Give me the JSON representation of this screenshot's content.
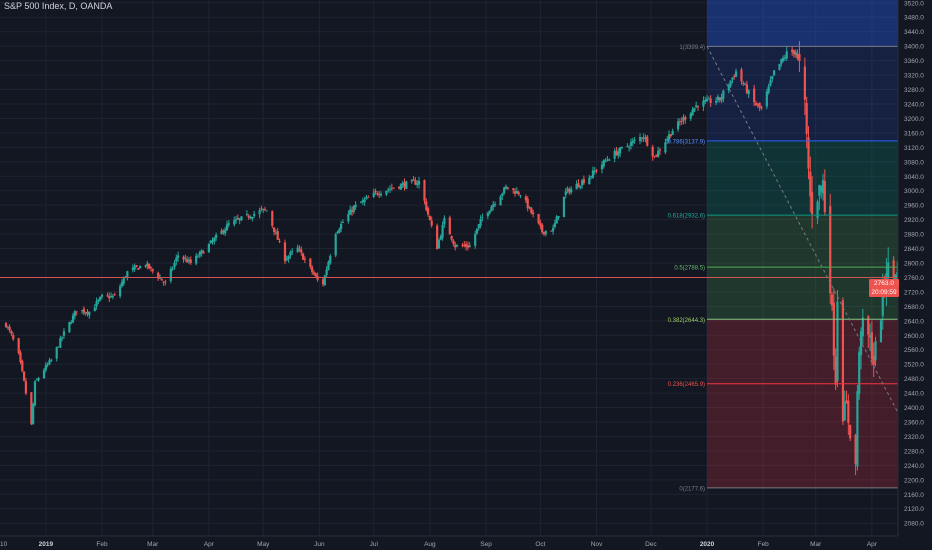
{
  "header": {
    "title": "S&P 500 Index, D, OANDA"
  },
  "colors": {
    "background": "#131722",
    "grid": "#1f2332",
    "up": "#26a69a",
    "down": "#ef5350",
    "axis_text": "#a3a6af",
    "horizontal_line": "#d05454"
  },
  "price_labels": {
    "last": "2763.0",
    "countdown": "20:09:59"
  },
  "chart_data": {
    "type": "candlestick",
    "title": "S&P 500 Index, D, OANDA",
    "ylim": [
      2070,
      3540
    ],
    "y_ticks": [
      2080.0,
      2120.0,
      2160.0,
      2200.0,
      2240.0,
      2280.0,
      2320.0,
      2360.0,
      2400.0,
      2440.0,
      2480.0,
      2520.0,
      2560.0,
      2600.0,
      2640.0,
      2680.0,
      2720.0,
      2760.0,
      2800.0,
      2840.0,
      2880.0,
      2920.0,
      2960.0,
      3000.0,
      3040.0,
      3080.0,
      3120.0,
      3160.0,
      3200.0,
      3240.0,
      3280.0,
      3320.0,
      3360.0,
      3400.0,
      3440.0,
      3480.0,
      3520.0
    ],
    "x_labels": [
      "2019",
      "Feb",
      "Mar",
      "Apr",
      "May",
      "Jun",
      "Jul",
      "Aug",
      "Sep",
      "Oct",
      "Nov",
      "Dec",
      "2020",
      "Feb",
      "Mar",
      "Apr"
    ],
    "partial_x_label": "10",
    "close_path": [
      [
        "2018-12-10",
        2630
      ],
      [
        "2018-12-13",
        2600
      ],
      [
        "2018-12-17",
        2545
      ],
      [
        "2018-12-20",
        2470
      ],
      [
        "2018-12-24",
        2351
      ],
      [
        "2018-12-26",
        2467
      ],
      [
        "2018-12-31",
        2506
      ],
      [
        "2019-01-04",
        2531
      ],
      [
        "2019-01-10",
        2596
      ],
      [
        "2019-01-18",
        2670
      ],
      [
        "2019-01-25",
        2665
      ],
      [
        "2019-02-01",
        2706
      ],
      [
        "2019-02-08",
        2707
      ],
      [
        "2019-02-15",
        2775
      ],
      [
        "2019-02-25",
        2796
      ],
      [
        "2019-03-08",
        2743
      ],
      [
        "2019-03-15",
        2822
      ],
      [
        "2019-03-22",
        2800
      ],
      [
        "2019-03-29",
        2834
      ],
      [
        "2019-04-12",
        2907
      ],
      [
        "2019-04-30",
        2945
      ],
      [
        "2019-05-03",
        2945
      ],
      [
        "2019-05-13",
        2812
      ],
      [
        "2019-05-20",
        2840
      ],
      [
        "2019-05-31",
        2752
      ],
      [
        "2019-06-03",
        2744
      ],
      [
        "2019-06-10",
        2886
      ],
      [
        "2019-06-20",
        2954
      ],
      [
        "2019-07-03",
        2995
      ],
      [
        "2019-07-15",
        3014
      ],
      [
        "2019-07-26",
        3025
      ],
      [
        "2019-08-05",
        2844
      ],
      [
        "2019-08-09",
        2918
      ],
      [
        "2019-08-15",
        2847
      ],
      [
        "2019-08-23",
        2847
      ],
      [
        "2019-08-30",
        2926
      ],
      [
        "2019-09-12",
        3009
      ],
      [
        "2019-09-20",
        2992
      ],
      [
        "2019-10-02",
        2887
      ],
      [
        "2019-10-08",
        2893
      ],
      [
        "2019-10-15",
        2995
      ],
      [
        "2019-10-28",
        3039
      ],
      [
        "2019-11-08",
        3093
      ],
      [
        "2019-11-27",
        3153
      ],
      [
        "2019-12-03",
        3093
      ],
      [
        "2019-12-13",
        3168
      ],
      [
        "2019-12-27",
        3240
      ],
      [
        "2020-01-08",
        3253
      ],
      [
        "2020-01-17",
        3330
      ],
      [
        "2020-01-27",
        3243
      ],
      [
        "2020-01-31",
        3225
      ],
      [
        "2020-02-07",
        3327
      ],
      [
        "2020-02-14",
        3380
      ],
      [
        "2020-02-19",
        3386
      ],
      [
        "2020-02-21",
        3337
      ],
      [
        "2020-02-24",
        3225
      ],
      [
        "2020-02-27",
        2978
      ],
      [
        "2020-02-28",
        2954
      ],
      [
        "2020-03-03",
        3003
      ],
      [
        "2020-03-05",
        3023
      ],
      [
        "2020-03-09",
        2746
      ],
      [
        "2020-03-12",
        2480
      ],
      [
        "2020-03-13",
        2711
      ],
      [
        "2020-03-16",
        2386
      ],
      [
        "2020-03-18",
        2398
      ],
      [
        "2020-03-23",
        2237
      ],
      [
        "2020-03-24",
        2447
      ],
      [
        "2020-03-26",
        2630
      ],
      [
        "2020-03-31",
        2585
      ],
      [
        "2020-04-02",
        2527
      ],
      [
        "2020-04-06",
        2664
      ],
      [
        "2020-04-09",
        2790
      ],
      [
        "2020-04-13",
        2762
      ],
      [
        "2020-04-14",
        2784
      ],
      [
        "2020-04-15",
        2763
      ]
    ],
    "last_price": 2763.0,
    "horizontal_line": 2760,
    "fibonacci": {
      "from": [
        "2020-01-01",
        3399.4
      ],
      "to": [
        "2020-04-16",
        2177.6
      ],
      "right_extent": "2020-04-16",
      "levels": [
        {
          "ratio": 1,
          "label": "1(3399.4)",
          "price": 3399.4,
          "line": "#787b86",
          "fill": "#787b86",
          "text": "#787b86"
        },
        {
          "ratio": 0.786,
          "label": "0.786(3137.9)",
          "price": 3137.9,
          "line": "#2962ff",
          "fill": "#2962ff",
          "text": "#5b8dff"
        },
        {
          "ratio": 0.618,
          "label": "0.618(2932.6)",
          "price": 2932.6,
          "line": "#089981",
          "fill": "#089981",
          "text": "#26a69a"
        },
        {
          "ratio": 0.5,
          "label": "0.5(2788.5)",
          "price": 2788.5,
          "line": "#4caf50",
          "fill": "#4caf50",
          "text": "#66bb6a"
        },
        {
          "ratio": 0.382,
          "label": "0.382(2644.3)",
          "price": 2644.3,
          "line": "#81c784",
          "fill": "#4caf50",
          "text": "#9ccc65"
        },
        {
          "ratio": 0.236,
          "label": "0.236(2465.9)",
          "price": 2465.9,
          "line": "#f23645",
          "fill": "#f23645",
          "text": "#ef5350"
        },
        {
          "ratio": 0,
          "label": "0(2177.6)",
          "price": 2177.6,
          "line": "#787b86",
          "fill": "#f23645",
          "text": "#787b86"
        }
      ],
      "extension_above": {
        "fill": "#2962ff"
      }
    }
  }
}
